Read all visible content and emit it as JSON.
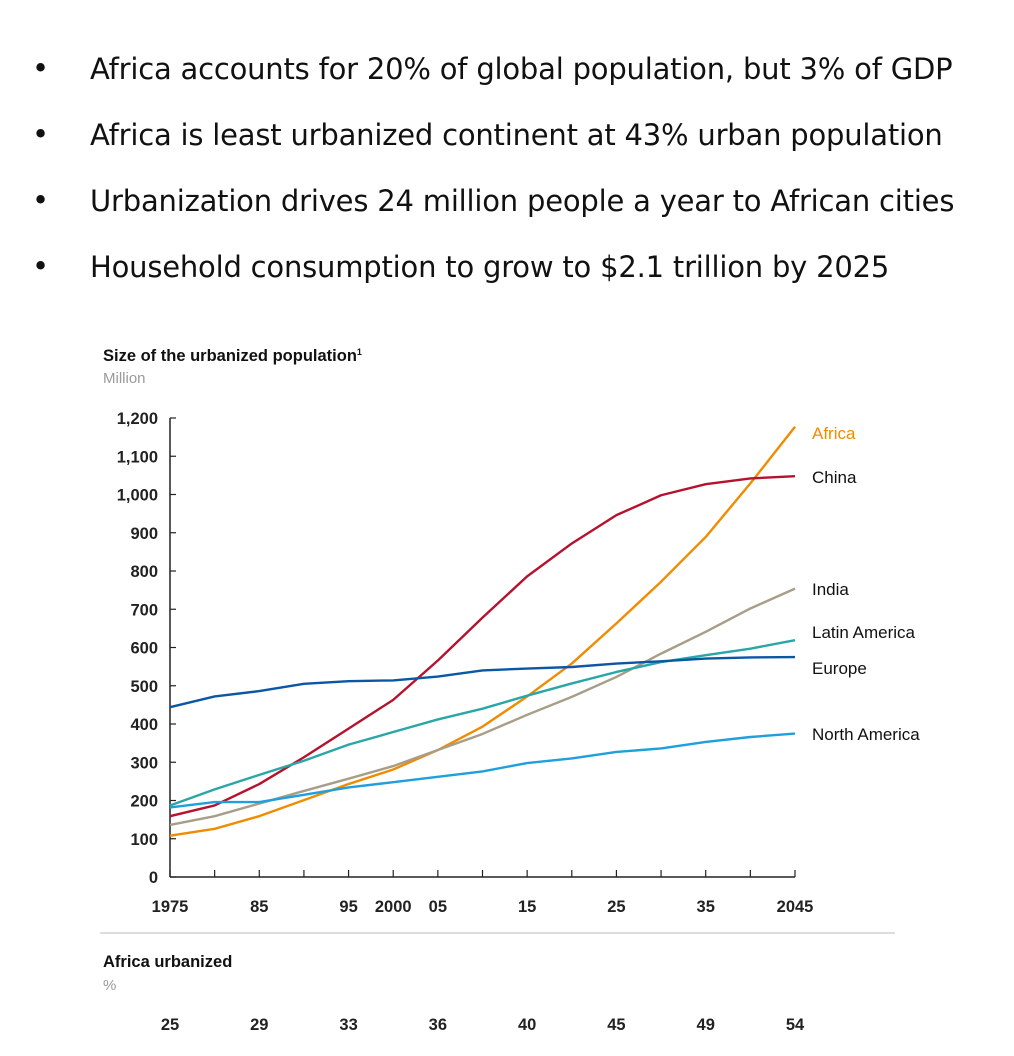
{
  "bullets": [
    "Africa accounts for 20% of global population, but 3% of GDP",
    "Africa is least urbanized continent at 43% urban population",
    "Urbanization drives 24 million people a year to African cities",
    "Household consumption to grow to $2.1 trillion by 2025"
  ],
  "bullet_symbol": "•",
  "chart_data": {
    "type": "line",
    "title": "Size of the urbanized population",
    "title_footnote": "1",
    "ylabel": "Million",
    "xlabel": "",
    "xlim": [
      1975,
      2045
    ],
    "ylim": [
      0,
      1200
    ],
    "yticks": [
      0,
      100,
      200,
      300,
      400,
      500,
      600,
      700,
      800,
      900,
      1000,
      1100,
      1200
    ],
    "ytick_labels": [
      "0",
      "100",
      "200",
      "300",
      "400",
      "500",
      "600",
      "700",
      "800",
      "900",
      "1,000",
      "1,100",
      "1,200"
    ],
    "xticks": [
      1975,
      1980,
      1985,
      1990,
      1995,
      2000,
      2005,
      2010,
      2015,
      2020,
      2025,
      2030,
      2035,
      2040,
      2045
    ],
    "xtick_labels": [
      {
        "x": 1975,
        "label": "1975"
      },
      {
        "x": 1985,
        "label": "85"
      },
      {
        "x": 1995,
        "label": "95"
      },
      {
        "x": 2000,
        "label": "2000"
      },
      {
        "x": 2005,
        "label": "05"
      },
      {
        "x": 2015,
        "label": "15"
      },
      {
        "x": 2025,
        "label": "25"
      },
      {
        "x": 2035,
        "label": "35"
      },
      {
        "x": 2045,
        "label": "2045"
      }
    ],
    "grid": false,
    "legend": "right-end labels",
    "x": [
      1975,
      1980,
      1985,
      1990,
      1995,
      2000,
      2005,
      2010,
      2015,
      2020,
      2025,
      2030,
      2035,
      2040,
      2045
    ],
    "series": [
      {
        "name": "Africa",
        "color": "#f08c00",
        "label_color": "#f08c00",
        "values": [
          108,
          126,
          159,
          201,
          243,
          281,
          332,
          393,
          472,
          558,
          663,
          772,
          889,
          1029,
          1177
        ]
      },
      {
        "name": "China",
        "color": "#b5122e",
        "label_color": "#111111",
        "values": [
          159,
          187,
          243,
          313,
          388,
          463,
          566,
          678,
          786,
          872,
          946,
          998,
          1027,
          1042,
          1048
        ]
      },
      {
        "name": "India",
        "color": "#a89e88",
        "label_color": "#111111",
        "values": [
          136,
          159,
          192,
          225,
          257,
          290,
          332,
          374,
          424,
          471,
          523,
          584,
          641,
          702,
          754
        ]
      },
      {
        "name": "Latin America",
        "color": "#2aa6a6",
        "label_color": "#111111",
        "values": [
          187,
          229,
          267,
          304,
          346,
          379,
          412,
          440,
          474,
          506,
          536,
          562,
          580,
          597,
          619
        ]
      },
      {
        "name": "Europe",
        "color": "#0b57a4",
        "label_color": "#111111",
        "values": [
          444,
          472,
          486,
          505,
          512,
          514,
          524,
          540,
          545,
          549,
          558,
          564,
          571,
          574,
          575
        ]
      },
      {
        "name": "North America",
        "color": "#1fa0dc",
        "label_color": "#111111",
        "values": [
          182,
          196,
          196,
          215,
          234,
          248,
          262,
          276,
          298,
          310,
          327,
          336,
          353,
          366,
          375
        ]
      }
    ],
    "sub_table": {
      "title": "Africa urbanized",
      "unit": "%",
      "x": [
        1975,
        1985,
        1995,
        2005,
        2015,
        2025,
        2035,
        2045
      ],
      "values": [
        "25",
        "29",
        "33",
        "36",
        "40",
        "45",
        "49",
        "54"
      ]
    }
  }
}
